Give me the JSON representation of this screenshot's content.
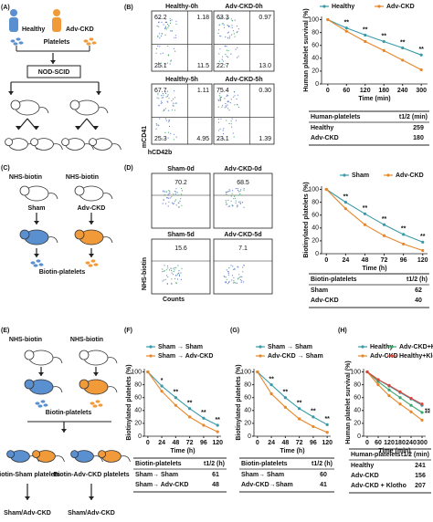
{
  "panel_labels": [
    "(A)",
    "(B)",
    "(C)",
    "(D)",
    "(E)",
    "(F)",
    "(G)",
    "(H)"
  ],
  "schematic_a": {
    "healthy": "Healthy",
    "adv_ckd": "Adv-CKD",
    "platelets": "Platelets",
    "host": "NOD-SCID"
  },
  "flow_b": {
    "x_label": "hCD42b",
    "y_label": "mCD41",
    "plots": [
      {
        "title": "Healthy-0h",
        "quadrants": [
          "62.2",
          "1.18",
          "25.1",
          "11.5"
        ]
      },
      {
        "title": "Adv-CKD-0h",
        "quadrants": [
          "63.3",
          "0.97",
          "22.7",
          "13.0"
        ]
      },
      {
        "title": "Healthy-5h",
        "quadrants": [
          "67.7",
          "1.11",
          "25.3",
          "4.95"
        ]
      },
      {
        "title": "Adv-CKD-5h",
        "quadrants": [
          "75.4",
          "0.30",
          "23.1",
          "1.39"
        ]
      }
    ]
  },
  "schematic_c": {
    "label_left": "NHS-biotin",
    "label_right": "NHS-biotin",
    "left": "Sham",
    "right": "Adv-CKD",
    "product": "Biotin-platelets"
  },
  "flow_d": {
    "x_label": "Counts",
    "y_label": "NHS-biotin",
    "plots": [
      {
        "title": "Sham-0d",
        "value": "70.2"
      },
      {
        "title": "Adv-CKD-0d",
        "value": "68.5"
      },
      {
        "title": "Sham-5d",
        "value": "15.6"
      },
      {
        "title": "Adv-CKD-5d",
        "value": "7.1"
      }
    ]
  },
  "schematic_e": {
    "label_left": "NHS-biotin",
    "label_right": "NHS-biotin",
    "product": "Biotin-platelets",
    "left_group": "Biotin-Sham platelets",
    "right_group": "Biotin-Adv-CKD platelets",
    "left_recipients": "Sham/Adv-CKD",
    "right_recipients": "Sham/Adv-CKD"
  },
  "chart_data": [
    {
      "type": "line",
      "ylabel": "Human platelet survival (%)",
      "xlabel": "Time (min)",
      "x": [
        0,
        60,
        120,
        180,
        240,
        300
      ],
      "xlim": [
        -20,
        320
      ],
      "xticks": [
        0,
        60,
        120,
        180,
        240,
        300
      ],
      "ylim": [
        0,
        105
      ],
      "yticks": [
        0,
        20,
        40,
        60,
        80,
        100
      ],
      "series": [
        {
          "name": "Healthy",
          "color": "#3a9aa8",
          "values": [
            100,
            87,
            76,
            66,
            56,
            45
          ]
        },
        {
          "name": "Adv-CKD",
          "color": "#e8862a",
          "values": [
            100,
            82,
            66,
            52,
            37,
            22
          ]
        }
      ],
      "annotations": [
        "**",
        "**",
        "**",
        "**",
        "**"
      ]
    },
    {
      "type": "line",
      "ylabel": "Biotinylated platelets (%)",
      "xlabel": "Time (h)",
      "x": [
        0,
        24,
        48,
        72,
        96,
        120
      ],
      "xlim": [
        -6,
        126
      ],
      "xticks": [
        0,
        24,
        48,
        72,
        96,
        120
      ],
      "ylim": [
        0,
        105
      ],
      "yticks": [
        0,
        20,
        40,
        60,
        80,
        100
      ],
      "series": [
        {
          "name": "Sham",
          "color": "#3a9aa8",
          "values": [
            100,
            80,
            62,
            45,
            30,
            18
          ]
        },
        {
          "name": "Adv-CKD",
          "color": "#e8862a",
          "values": [
            100,
            70,
            45,
            28,
            15,
            5
          ]
        }
      ],
      "annotations": [
        "**",
        "**",
        "**",
        "**",
        "**"
      ]
    },
    {
      "type": "line",
      "ylabel": "Biotinylated platelets (%)",
      "xlabel": "Time (h)",
      "x": [
        0,
        24,
        48,
        72,
        96,
        120
      ],
      "xlim": [
        -6,
        126
      ],
      "xticks": [
        0,
        24,
        48,
        72,
        96,
        120
      ],
      "ylim": [
        0,
        105
      ],
      "yticks": [
        0,
        20,
        40,
        60,
        80,
        100
      ],
      "series": [
        {
          "name": "Sham → Sham",
          "color": "#3a9aa8",
          "values": [
            100,
            78,
            60,
            43,
            28,
            17
          ]
        },
        {
          "name": "Sham → Adv-CKD",
          "color": "#e8862a",
          "values": [
            100,
            70,
            48,
            30,
            17,
            7
          ]
        }
      ],
      "annotations": [
        "*",
        "**",
        "**",
        "**",
        "**"
      ]
    },
    {
      "type": "line",
      "ylabel": "Biotinylated platelets (%)",
      "xlabel": "Time (h)",
      "x": [
        0,
        24,
        48,
        72,
        96,
        120
      ],
      "xlim": [
        -6,
        126
      ],
      "xticks": [
        0,
        24,
        48,
        72,
        96,
        120
      ],
      "ylim": [
        0,
        105
      ],
      "yticks": [
        0,
        20,
        40,
        60,
        80,
        100
      ],
      "series": [
        {
          "name": "Sham → Sham",
          "color": "#3a9aa8",
          "values": [
            100,
            80,
            60,
            43,
            30,
            18
          ]
        },
        {
          "name": "Adv-CKD → Sham",
          "color": "#e8862a",
          "values": [
            100,
            66,
            45,
            27,
            15,
            6
          ]
        }
      ],
      "annotations": [
        "**",
        "**",
        "**",
        "**",
        "**"
      ]
    },
    {
      "type": "line",
      "ylabel": "Human platelet survival (%)",
      "xlabel": "Time (min)",
      "x": [
        0,
        60,
        120,
        180,
        240,
        300
      ],
      "xlim": [
        -20,
        320
      ],
      "xticks": [
        0,
        60,
        120,
        180,
        240,
        300
      ],
      "ylim": [
        0,
        105
      ],
      "yticks": [
        0,
        20,
        40,
        60,
        80,
        100
      ],
      "series": [
        {
          "name": "Healthy",
          "color": "#3a9aa8",
          "values": [
            100,
            88,
            78,
            68,
            58,
            48
          ]
        },
        {
          "name": "Adv-CKD+Klotho",
          "color": "#3aa56a",
          "values": [
            100,
            85,
            72,
            60,
            48,
            37
          ]
        },
        {
          "name": "Adv-CKD",
          "color": "#e8862a",
          "values": [
            100,
            80,
            63,
            50,
            38,
            25
          ]
        },
        {
          "name": "Healthy+Klotho",
          "color": "#d9453b",
          "values": [
            100,
            88,
            79,
            69,
            59,
            50
          ]
        }
      ],
      "annotations": [
        "**",
        "**"
      ]
    }
  ],
  "tables": [
    {
      "header": [
        "Human-platelets",
        "t1/2 (min)"
      ],
      "rows": [
        [
          "Healthy",
          259
        ],
        [
          "Adv-CKD",
          180
        ]
      ]
    },
    {
      "header": [
        "Biotin-platelets",
        "t1/2 (h)"
      ],
      "rows": [
        [
          "Sham",
          62
        ],
        [
          "Adv-CKD",
          40
        ]
      ]
    },
    {
      "header": [
        "Biotin-platelets",
        "t1/2 (h)"
      ],
      "rows": [
        [
          "Sham→ Sham",
          61
        ],
        [
          "Sham→ Adv-CKD",
          48
        ]
      ]
    },
    {
      "header": [
        "Biotin-platelets",
        "t1/2 (h)"
      ],
      "rows": [
        [
          "Sham→ Sham",
          60
        ],
        [
          "Adv-CKD→Sham",
          41
        ]
      ]
    },
    {
      "header": [
        "Human-platelets",
        "t1/2 (min)"
      ],
      "rows": [
        [
          "Healthy",
          241
        ],
        [
          "Adv-CKD",
          156
        ],
        [
          "Adv-CKD + Klotho",
          207
        ]
      ]
    }
  ]
}
